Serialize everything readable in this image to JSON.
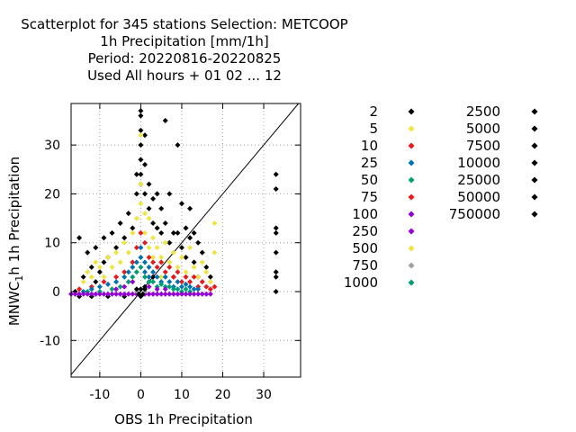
{
  "chart_data": {
    "type": "scatter",
    "title_lines": [
      "Scatterplot for  345 stations Selection: METCOOP",
      "1h Precipitation [mm/1h]",
      "Period: 20220816-20220825",
      "Used  All hours  + 01 02 ... 12"
    ],
    "xlabel": "OBS 1h Precipitation",
    "ylabel_main": "MNWC",
    "ylabel_sub": "1",
    "ylabel_rest": "h 1h Precipitation",
    "xlim": [
      -17,
      39
    ],
    "ylim": [
      -17.5,
      38.5
    ],
    "xticks": [
      -10,
      0,
      10,
      20,
      30
    ],
    "yticks": [
      -10,
      0,
      10,
      20,
      30
    ],
    "grid": true,
    "diagonal_reference_line": true,
    "legend_placement": "right",
    "legend_col1": [
      {
        "label": "2",
        "color": "#000000"
      },
      {
        "label": "5",
        "color": "#f0e442"
      },
      {
        "label": "10",
        "color": "#e41a1c"
      },
      {
        "label": "25",
        "color": "#0072b2"
      },
      {
        "label": "50",
        "color": "#009e73"
      },
      {
        "label": "75",
        "color": "#e41a1c"
      },
      {
        "label": "100",
        "color": "#9400d3"
      },
      {
        "label": "250",
        "color": "#9400d3"
      },
      {
        "label": "500",
        "color": "#f0e442"
      },
      {
        "label": "750",
        "color": "#a0a0a0"
      },
      {
        "label": "1000",
        "color": "#009e73"
      }
    ],
    "legend_col2": [
      {
        "label": "2500",
        "color": "#000000"
      },
      {
        "label": "5000",
        "color": "#000000"
      },
      {
        "label": "7500",
        "color": "#000000"
      },
      {
        "label": "10000",
        "color": "#000000"
      },
      {
        "label": "25000",
        "color": "#000000"
      },
      {
        "label": "50000",
        "color": "#000000"
      },
      {
        "label": "750000",
        "color": "#000000"
      }
    ],
    "series": [
      {
        "color": "#000000",
        "points": [
          [
            -16,
            0
          ],
          [
            -15,
            11
          ],
          [
            -14,
            3
          ],
          [
            -13,
            8
          ],
          [
            -12,
            5
          ],
          [
            -11,
            2
          ],
          [
            -11,
            9
          ],
          [
            -10,
            4
          ],
          [
            -9,
            11
          ],
          [
            -9,
            6
          ],
          [
            -8,
            7
          ],
          [
            -7,
            12
          ],
          [
            -6,
            9
          ],
          [
            -5,
            14
          ],
          [
            -4,
            11
          ],
          [
            -3,
            16
          ],
          [
            -2,
            13
          ],
          [
            -1,
            20
          ],
          [
            -1,
            24
          ],
          [
            0,
            37
          ],
          [
            0,
            36
          ],
          [
            0,
            33
          ],
          [
            0,
            30
          ],
          [
            0,
            27
          ],
          [
            0,
            24
          ],
          [
            0,
            22
          ],
          [
            1,
            32
          ],
          [
            1,
            20
          ],
          [
            1,
            26
          ],
          [
            2,
            17
          ],
          [
            2,
            22
          ],
          [
            3,
            19
          ],
          [
            3,
            14
          ],
          [
            4,
            20
          ],
          [
            4,
            13
          ],
          [
            5,
            17
          ],
          [
            5,
            12
          ],
          [
            6,
            14
          ],
          [
            6,
            35
          ],
          [
            7,
            20
          ],
          [
            7,
            10
          ],
          [
            8,
            12
          ],
          [
            8,
            3
          ],
          [
            9,
            30
          ],
          [
            9,
            12
          ],
          [
            10,
            18
          ],
          [
            10,
            9
          ],
          [
            11,
            13
          ],
          [
            11,
            7
          ],
          [
            12,
            11
          ],
          [
            12,
            17
          ],
          [
            13,
            12
          ],
          [
            13,
            6
          ],
          [
            14,
            10
          ],
          [
            14,
            3
          ],
          [
            15,
            8
          ],
          [
            16,
            5
          ],
          [
            17,
            3
          ],
          [
            -15,
            -1
          ],
          [
            -12,
            -1
          ],
          [
            -8,
            -1
          ],
          [
            -4,
            -1
          ],
          [
            0,
            -1
          ],
          [
            1,
            1
          ],
          [
            2,
            2
          ],
          [
            3,
            3
          ],
          [
            33,
            24
          ],
          [
            33,
            21
          ],
          [
            33,
            13
          ],
          [
            33,
            12
          ],
          [
            33,
            8
          ],
          [
            33,
            4
          ],
          [
            33,
            3
          ],
          [
            33,
            0
          ]
        ]
      },
      {
        "color": "#f0e442",
        "points": [
          [
            -16,
            -0.5
          ],
          [
            -14,
            2
          ],
          [
            -13,
            4
          ],
          [
            -12,
            3
          ],
          [
            -11,
            6
          ],
          [
            -10,
            5
          ],
          [
            -9,
            3
          ],
          [
            -8,
            7
          ],
          [
            -7,
            5
          ],
          [
            -6,
            8
          ],
          [
            -5,
            6
          ],
          [
            -4,
            10
          ],
          [
            -3,
            8
          ],
          [
            -2,
            12
          ],
          [
            -1,
            15
          ],
          [
            0,
            32
          ],
          [
            0,
            22
          ],
          [
            0,
            18
          ],
          [
            1,
            16
          ],
          [
            1,
            12
          ],
          [
            2,
            15
          ],
          [
            2,
            9
          ],
          [
            3,
            11
          ],
          [
            3,
            7
          ],
          [
            4,
            9
          ],
          [
            5,
            7
          ],
          [
            6,
            10
          ],
          [
            7,
            6
          ],
          [
            8,
            8
          ],
          [
            9,
            5
          ],
          [
            10,
            7
          ],
          [
            11,
            4
          ],
          [
            12,
            9
          ],
          [
            13,
            5
          ],
          [
            14,
            3
          ],
          [
            15,
            6
          ],
          [
            16,
            4
          ],
          [
            17,
            2
          ],
          [
            18,
            14
          ],
          [
            18,
            8
          ],
          [
            -1,
            4
          ],
          [
            1,
            3
          ],
          [
            5,
            3
          ]
        ]
      },
      {
        "color": "#e41a1c",
        "points": [
          [
            -15,
            0.5
          ],
          [
            -12,
            1
          ],
          [
            -9,
            2
          ],
          [
            -6,
            3
          ],
          [
            -4,
            4
          ],
          [
            -2,
            6
          ],
          [
            -1,
            9
          ],
          [
            0,
            12
          ],
          [
            1,
            10
          ],
          [
            2,
            7
          ],
          [
            3,
            6
          ],
          [
            4,
            5
          ],
          [
            5,
            6
          ],
          [
            6,
            4
          ],
          [
            7,
            5
          ],
          [
            8,
            3
          ],
          [
            9,
            4
          ],
          [
            10,
            2
          ],
          [
            11,
            3
          ],
          [
            12,
            2
          ],
          [
            13,
            3
          ],
          [
            14,
            1
          ],
          [
            15,
            2
          ],
          [
            16,
            1
          ],
          [
            17,
            0.5
          ],
          [
            18,
            1
          ]
        ]
      },
      {
        "color": "#0072b2",
        "points": [
          [
            -14,
            0
          ],
          [
            -12,
            0.5
          ],
          [
            -10,
            1
          ],
          [
            -8,
            1.5
          ],
          [
            -6,
            2
          ],
          [
            -4,
            3
          ],
          [
            -3,
            4
          ],
          [
            -2,
            5
          ],
          [
            -1,
            6
          ],
          [
            0,
            9
          ],
          [
            0,
            7
          ],
          [
            1,
            6
          ],
          [
            1,
            4
          ],
          [
            2,
            5
          ],
          [
            2,
            3
          ],
          [
            3,
            4
          ],
          [
            4,
            3
          ],
          [
            5,
            2
          ],
          [
            6,
            3
          ],
          [
            7,
            2
          ],
          [
            8,
            1
          ],
          [
            9,
            2
          ],
          [
            10,
            1
          ],
          [
            11,
            1.5
          ],
          [
            12,
            1
          ],
          [
            13,
            0.5
          ],
          [
            14,
            0.5
          ]
        ]
      },
      {
        "color": "#009e73",
        "points": [
          [
            -13,
            0
          ],
          [
            -10,
            0
          ],
          [
            -7,
            0.5
          ],
          [
            -5,
            1
          ],
          [
            -3,
            2
          ],
          [
            -2,
            3
          ],
          [
            -1,
            4
          ],
          [
            0,
            5
          ],
          [
            1,
            3
          ],
          [
            2,
            2
          ],
          [
            3,
            2
          ],
          [
            4,
            1
          ],
          [
            5,
            1.5
          ],
          [
            6,
            1
          ],
          [
            7,
            1
          ],
          [
            8,
            0.5
          ],
          [
            9,
            0.5
          ],
          [
            10,
            0
          ],
          [
            11,
            0.5
          ],
          [
            12,
            0
          ]
        ]
      },
      {
        "color": "#9400d3",
        "points": [
          [
            -17,
            -0.5
          ],
          [
            -16,
            -0.5
          ],
          [
            -15,
            -0.5
          ],
          [
            -14,
            -0.5
          ],
          [
            -13,
            -0.5
          ],
          [
            -12,
            -0.5
          ],
          [
            -11,
            -0.5
          ],
          [
            -10,
            -0.5
          ],
          [
            -9,
            -0.5
          ],
          [
            -8,
            -0.5
          ],
          [
            -7,
            -0.5
          ],
          [
            -6,
            -0.5
          ],
          [
            -5,
            -0.5
          ],
          [
            -4,
            -0.5
          ],
          [
            -3,
            -0.5
          ],
          [
            -2,
            -0.5
          ],
          [
            -1,
            -0.5
          ],
          [
            1,
            -0.5
          ],
          [
            2,
            -0.5
          ],
          [
            3,
            -0.5
          ],
          [
            4,
            -0.5
          ],
          [
            5,
            -0.5
          ],
          [
            6,
            -0.5
          ],
          [
            7,
            -0.5
          ],
          [
            8,
            -0.5
          ],
          [
            9,
            -0.5
          ],
          [
            10,
            -0.5
          ],
          [
            11,
            -0.5
          ],
          [
            12,
            -0.5
          ],
          [
            13,
            -0.5
          ],
          [
            14,
            -0.5
          ],
          [
            15,
            -0.5
          ],
          [
            16,
            -0.5
          ],
          [
            17,
            -0.5
          ],
          [
            -6,
            0.5
          ],
          [
            -4,
            1
          ],
          [
            -2,
            2
          ],
          [
            2,
            1
          ],
          [
            4,
            0.5
          ],
          [
            6,
            0.5
          ]
        ]
      },
      {
        "color": "#a0a0a0",
        "points": [
          [
            -1,
            0
          ],
          [
            1,
            0
          ]
        ]
      },
      {
        "color": "#000000",
        "points": [
          [
            -0.5,
            -0.5
          ],
          [
            0.5,
            -0.5
          ],
          [
            0,
            0.5
          ],
          [
            -1,
            0.5
          ],
          [
            1,
            0.5
          ]
        ]
      }
    ]
  }
}
